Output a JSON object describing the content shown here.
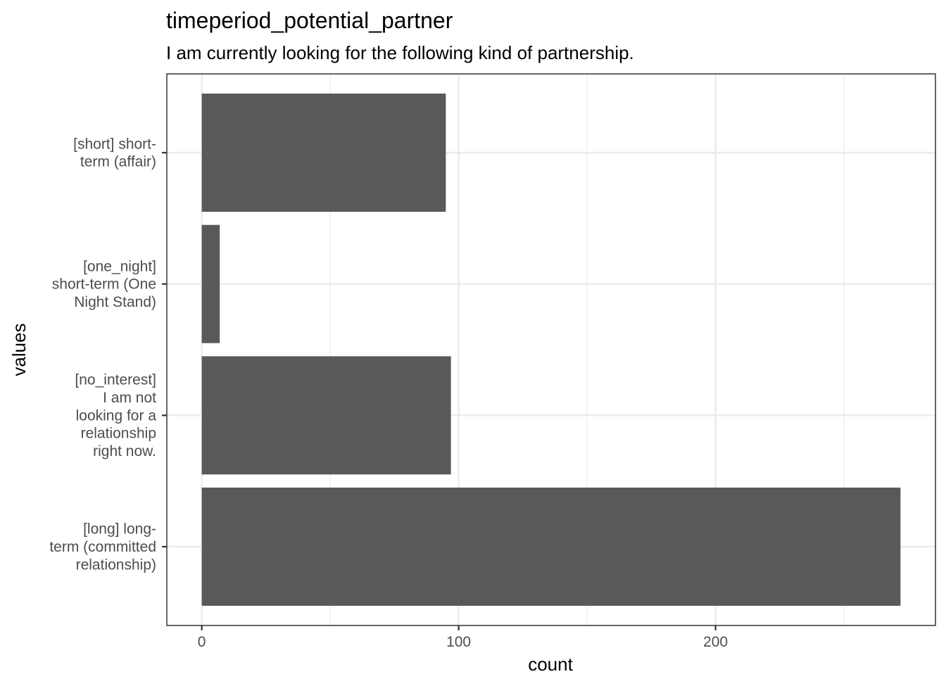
{
  "chart_data": {
    "type": "bar",
    "orientation": "horizontal",
    "title": "timeperiod_potential_partner",
    "subtitle": "I am currently looking for the following kind of partnership.",
    "xlabel": "count",
    "ylabel": "values",
    "categories": [
      {
        "label": "[short] short-term (affair)",
        "lines": [
          "[short] short-",
          "term (affair)"
        ]
      },
      {
        "label": "[one_night] short-term (One Night Stand)",
        "lines": [
          "[one_night]",
          "short-term (One",
          "Night Stand)"
        ]
      },
      {
        "label": "[no_interest] I am not looking for a relationship right now.",
        "lines": [
          "[no_interest]",
          "I am not",
          "looking for a",
          "relationship",
          "right now."
        ]
      },
      {
        "label": "[long] long-term (committed relationship)",
        "lines": [
          "[long] long-",
          "term (committed",
          "relationship)"
        ]
      }
    ],
    "values": [
      95,
      7,
      97,
      272
    ],
    "xticks": [
      0,
      100,
      200
    ],
    "xlim": [
      -13.6,
      285.6
    ],
    "grid": true,
    "bar_color": "#595959",
    "grid_color": "#ebebeb",
    "panel_border_color": "#333333"
  }
}
